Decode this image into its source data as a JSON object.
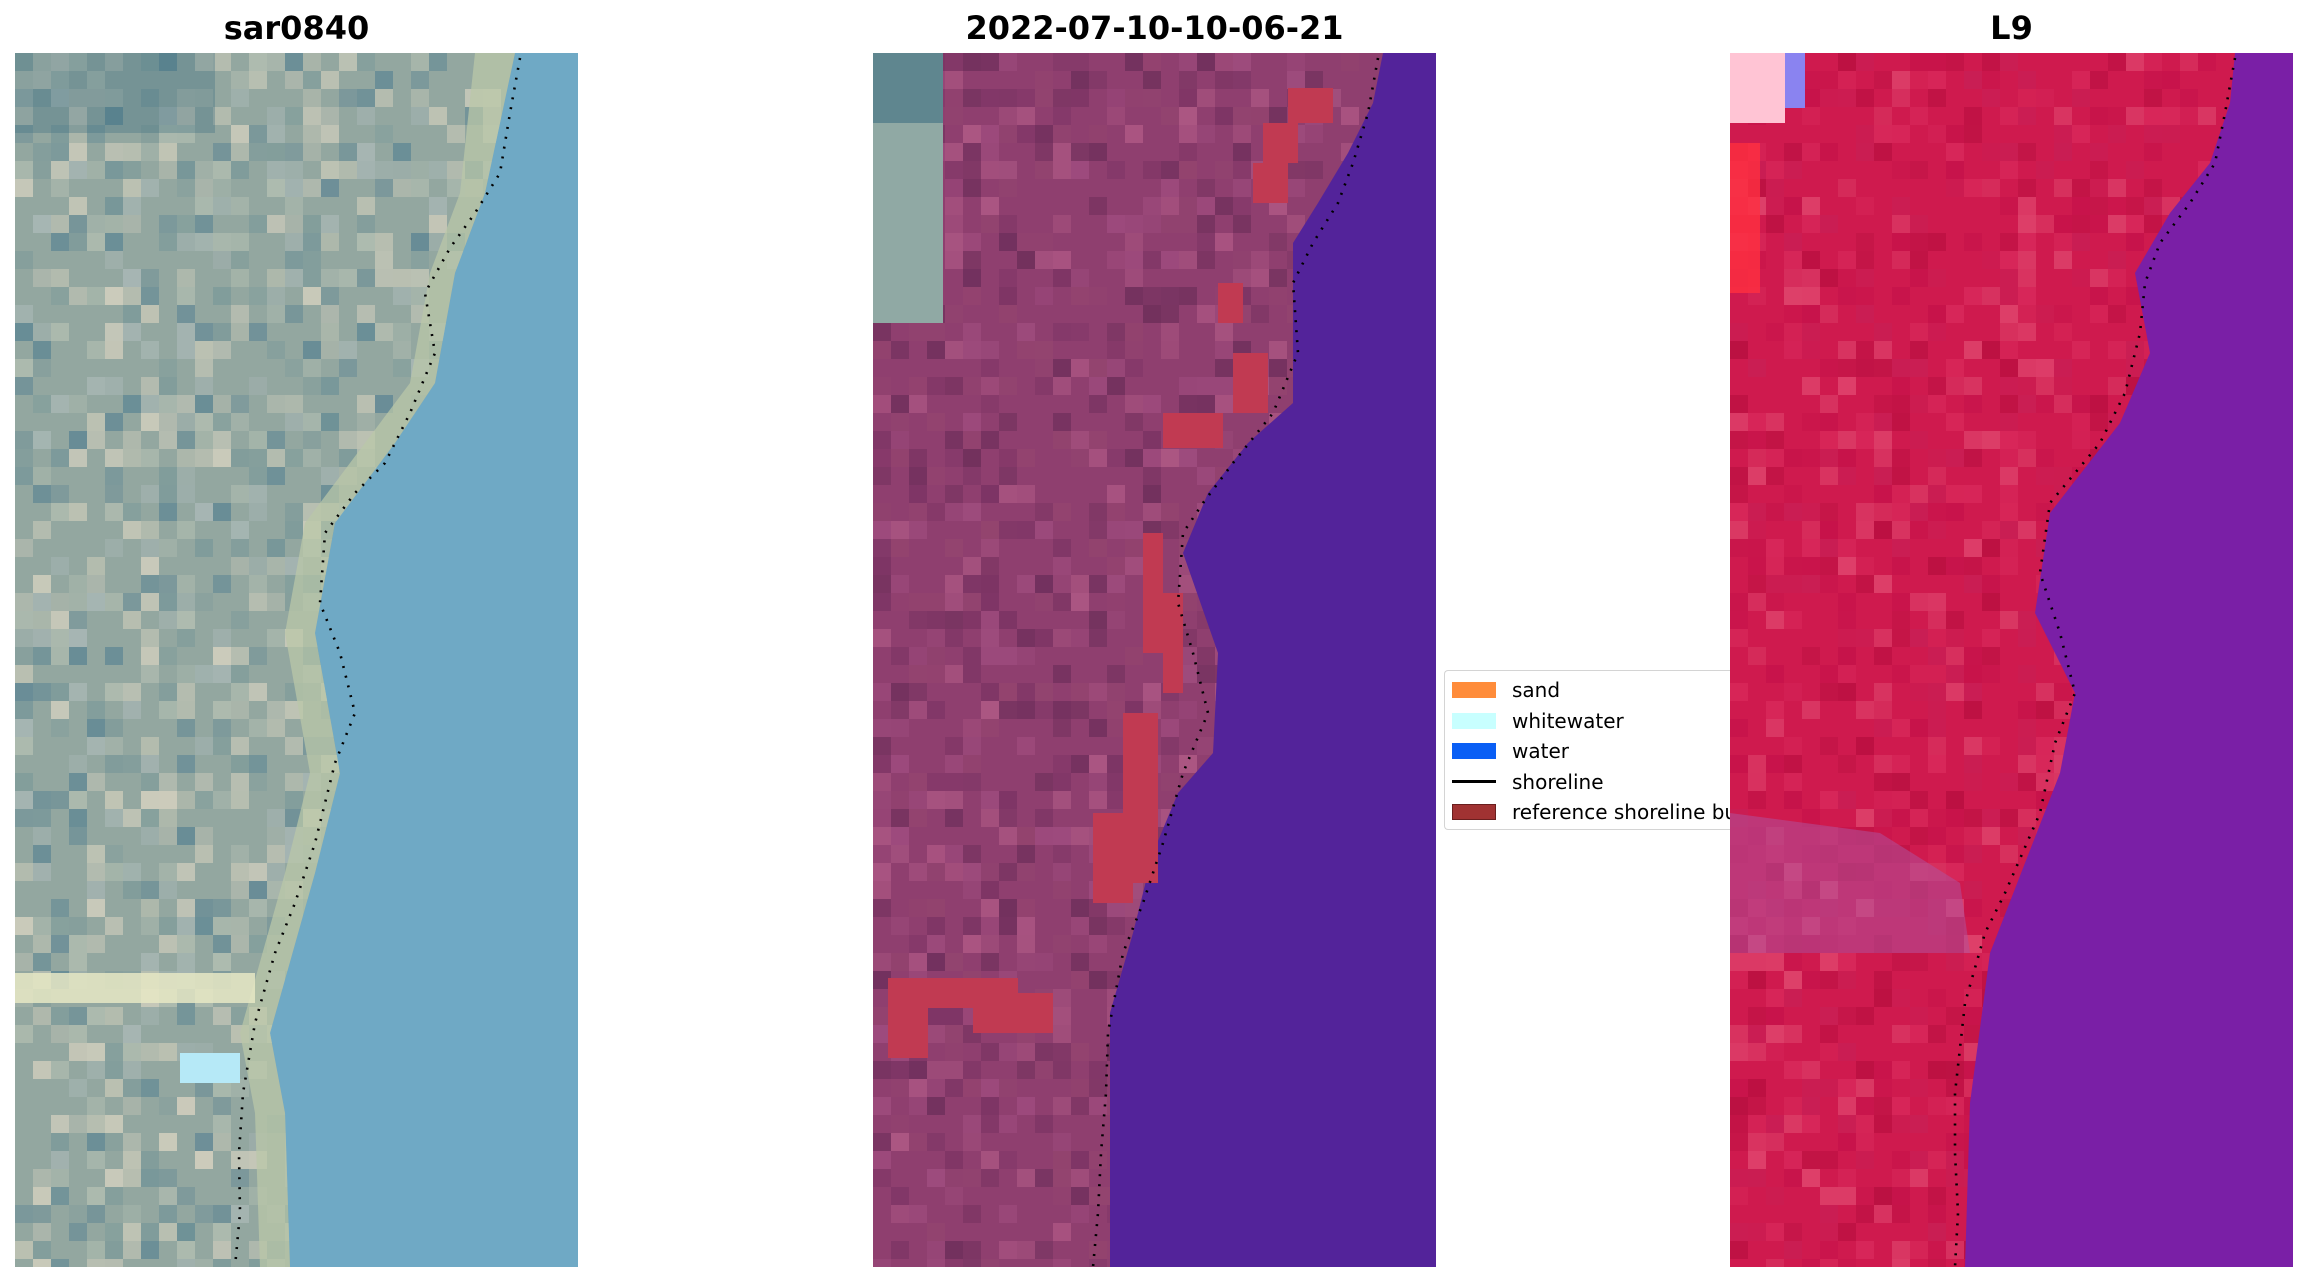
{
  "panels": [
    {
      "title": "sar0840",
      "style": "rgb"
    },
    {
      "title": "2022-07-10-10-06-21",
      "style": "classified"
    },
    {
      "title": "L9",
      "style": "falsecolor"
    }
  ],
  "legend": {
    "items": [
      {
        "label": "sand",
        "color": "#ff8c3a",
        "kind": "patch"
      },
      {
        "label": "whitewater",
        "color": "#c8ffff",
        "kind": "patch"
      },
      {
        "label": "water",
        "color": "#0a5ff5",
        "kind": "patch"
      },
      {
        "label": "shoreline",
        "color": "#000000",
        "kind": "line"
      },
      {
        "label": "reference shoreline buffer",
        "color": "#a03232",
        "kind": "patch"
      }
    ]
  },
  "colors": {
    "rgb_land": "#93a7a0",
    "rgb_water": "#6fa9c5",
    "classified_land": "#8f3f6f",
    "classified_water": "#53239a",
    "buffer": "#c13a52",
    "false_land": "#cf1a4e",
    "false_water": "#7a1fa6",
    "shoreline": "#000000"
  }
}
